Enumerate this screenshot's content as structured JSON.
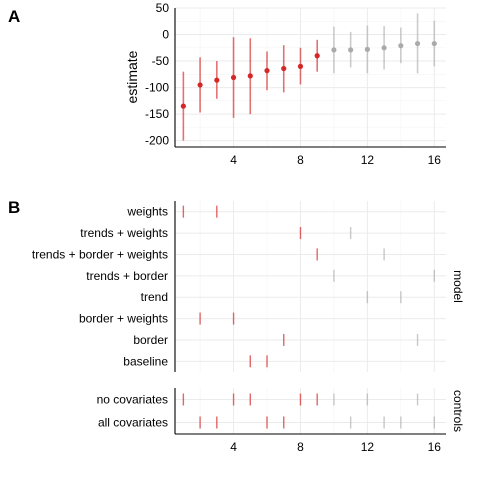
{
  "colors": {
    "significant": "#d62728",
    "not_significant": "#aaaaaa",
    "grid": "#ebebeb",
    "axis": "#000000"
  },
  "chart_data": [
    {
      "panel": "A",
      "type": "scatter",
      "title": "",
      "xlabel": "",
      "ylabel": "estimate",
      "xlim": [
        0.5,
        16.7
      ],
      "ylim": [
        -212,
        50
      ],
      "x_ticks": [
        4,
        8,
        12,
        16
      ],
      "y_ticks": [
        50,
        0,
        -50,
        -100,
        -150,
        -200
      ],
      "grid": true,
      "points": [
        {
          "x": 1,
          "y": -135,
          "low": -200,
          "high": -70,
          "significant": true
        },
        {
          "x": 2,
          "y": -95,
          "low": -147,
          "high": -43,
          "significant": true
        },
        {
          "x": 3,
          "y": -86,
          "low": -121,
          "high": -50,
          "significant": true
        },
        {
          "x": 4,
          "y": -81,
          "low": -157,
          "high": -5,
          "significant": true
        },
        {
          "x": 5,
          "y": -78,
          "low": -150,
          "high": -7,
          "significant": true
        },
        {
          "x": 6,
          "y": -68,
          "low": -105,
          "high": -32,
          "significant": true
        },
        {
          "x": 7,
          "y": -64,
          "low": -109,
          "high": -20,
          "significant": true
        },
        {
          "x": 8,
          "y": -60,
          "low": -94,
          "high": -25,
          "significant": true
        },
        {
          "x": 9,
          "y": -40,
          "low": -70,
          "high": -10,
          "significant": true
        },
        {
          "x": 10,
          "y": -29,
          "low": -73,
          "high": 15,
          "significant": false
        },
        {
          "x": 11,
          "y": -29,
          "low": -62,
          "high": 5,
          "significant": false
        },
        {
          "x": 12,
          "y": -28,
          "low": -73,
          "high": 17,
          "significant": false
        },
        {
          "x": 13,
          "y": -25,
          "low": -66,
          "high": 16,
          "significant": false
        },
        {
          "x": 14,
          "y": -21,
          "low": -54,
          "high": 13,
          "significant": false
        },
        {
          "x": 15,
          "y": -17,
          "low": -73,
          "high": 40,
          "significant": false
        },
        {
          "x": 16,
          "y": -17,
          "low": -60,
          "high": 26,
          "significant": false
        }
      ]
    },
    {
      "panel": "B",
      "type": "scatter",
      "title": "",
      "xlim": [
        0.5,
        16.7
      ],
      "x_ticks": [
        4,
        8,
        12,
        16
      ],
      "grid": true,
      "facets": [
        {
          "strip": "model",
          "rows": [
            {
              "label": "weights",
              "x": [
                1,
                3
              ]
            },
            {
              "label": "trends + weights",
              "x": [
                8,
                11
              ]
            },
            {
              "label": "trends + border + weights",
              "x": [
                9,
                13
              ]
            },
            {
              "label": "trends + border",
              "x": [
                10,
                16
              ]
            },
            {
              "label": "trend",
              "x": [
                12,
                14
              ]
            },
            {
              "label": "border + weights",
              "x": [
                2,
                4
              ]
            },
            {
              "label": "border",
              "x": [
                7,
                15
              ]
            },
            {
              "label": "baseline",
              "x": [
                5,
                6
              ]
            }
          ]
        },
        {
          "strip": "controls",
          "rows": [
            {
              "label": "no covariates",
              "x": [
                1,
                4,
                5,
                8,
                9,
                10,
                12,
                15
              ]
            },
            {
              "label": "all covariates",
              "x": [
                2,
                3,
                6,
                7,
                11,
                13,
                14,
                16
              ]
            }
          ]
        }
      ],
      "significant_max_x": 9
    }
  ]
}
